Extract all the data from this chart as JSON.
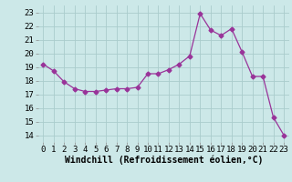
{
  "x": [
    0,
    1,
    2,
    3,
    4,
    5,
    6,
    7,
    8,
    9,
    10,
    11,
    12,
    13,
    14,
    15,
    16,
    17,
    18,
    19,
    20,
    21,
    22,
    23
  ],
  "y": [
    19.2,
    18.7,
    17.9,
    17.4,
    17.2,
    17.2,
    17.3,
    17.4,
    17.4,
    17.5,
    18.5,
    18.5,
    18.8,
    19.2,
    19.8,
    22.9,
    21.7,
    21.3,
    21.8,
    20.1,
    18.3,
    18.3,
    15.3,
    14.0
  ],
  "line_color": "#993399",
  "marker": "D",
  "marker_size": 2.5,
  "bg_color": "#cce8e8",
  "grid_color": "#aacccc",
  "xlabel": "Windchill (Refroidissement éolien,°C)",
  "xlim": [
    -0.5,
    23.5
  ],
  "ylim": [
    13.5,
    23.5
  ],
  "yticks": [
    14,
    15,
    16,
    17,
    18,
    19,
    20,
    21,
    22,
    23
  ],
  "xticks": [
    0,
    1,
    2,
    3,
    4,
    5,
    6,
    7,
    8,
    9,
    10,
    11,
    12,
    13,
    14,
    15,
    16,
    17,
    18,
    19,
    20,
    21,
    22,
    23
  ],
  "tick_label_size": 6.5,
  "xlabel_size": 7.0
}
